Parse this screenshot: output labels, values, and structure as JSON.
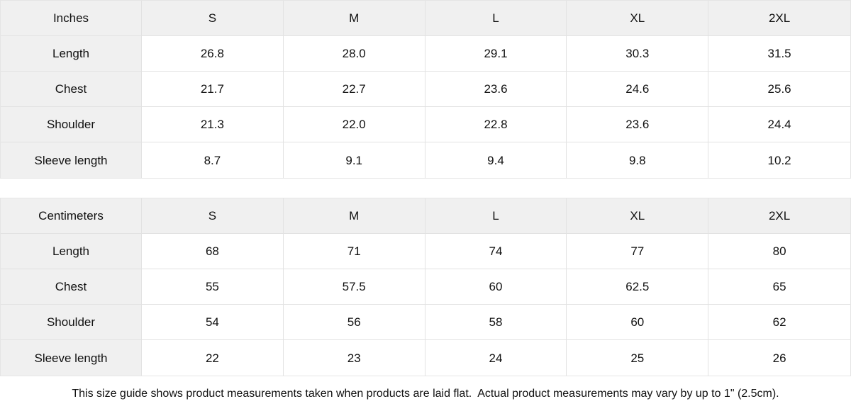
{
  "tables": [
    {
      "unit": "Inches",
      "sizes": [
        "S",
        "M",
        "L",
        "XL",
        "2XL"
      ],
      "rows": [
        {
          "label": "Length",
          "values": [
            "26.8",
            "28.0",
            "29.1",
            "30.3",
            "31.5"
          ]
        },
        {
          "label": "Chest",
          "values": [
            "21.7",
            "22.7",
            "23.6",
            "24.6",
            "25.6"
          ]
        },
        {
          "label": "Shoulder",
          "values": [
            "21.3",
            "22.0",
            "22.8",
            "23.6",
            "24.4"
          ]
        },
        {
          "label": "Sleeve length",
          "values": [
            "8.7",
            "9.1",
            "9.4",
            "9.8",
            "10.2"
          ]
        }
      ]
    },
    {
      "unit": "Centimeters",
      "sizes": [
        "S",
        "M",
        "L",
        "XL",
        "2XL"
      ],
      "rows": [
        {
          "label": "Length",
          "values": [
            "68",
            "71",
            "74",
            "77",
            "80"
          ]
        },
        {
          "label": "Chest",
          "values": [
            "55",
            "57.5",
            "60",
            "62.5",
            "65"
          ]
        },
        {
          "label": "Shoulder",
          "values": [
            "54",
            "56",
            "58",
            "60",
            "62"
          ]
        },
        {
          "label": "Sleeve length",
          "values": [
            "22",
            "23",
            "24",
            "25",
            "26"
          ]
        }
      ]
    }
  ],
  "note": "This size guide shows product measurements taken when products are laid flat.  Actual product measurements may vary by up to 1\" (2.5cm).",
  "colors": {
    "header_bg": "#f0f0f0",
    "border": "#e2e2e2",
    "text": "#111111"
  }
}
